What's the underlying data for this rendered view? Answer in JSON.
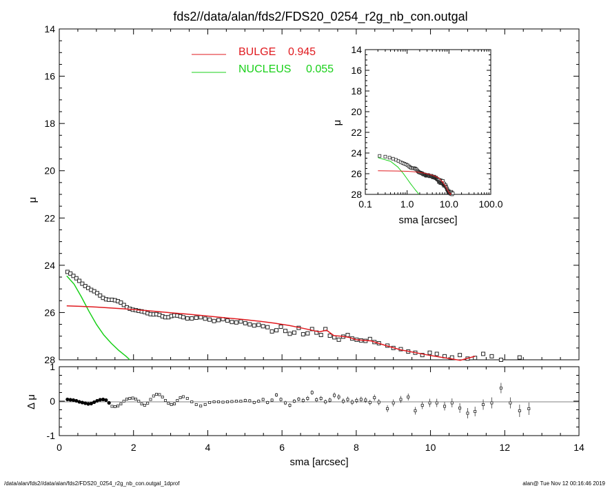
{
  "chart_data": [
    {
      "type": "scatter",
      "title": "fds2//data/alan/fds2/FDS20_0254_r2g_nb_con.outgal",
      "xlabel": "",
      "ylabel": "μ",
      "xlim": [
        0,
        14
      ],
      "ylim": [
        28,
        14
      ],
      "y_reversed": true,
      "xticks": [
        "0",
        "2",
        "4",
        "6",
        "8",
        "10",
        "12",
        "14"
      ],
      "yticks": [
        "14",
        "16",
        "18",
        "20",
        "22",
        "24",
        "26",
        "28"
      ],
      "legend_position": "top-center",
      "legend": [
        {
          "name": "BULGE",
          "value": "0.945",
          "color": "#e0191e"
        },
        {
          "name": "NUCLEUS",
          "value": "0.055",
          "color": "#18d018"
        }
      ],
      "observed": {
        "sma": [
          0.22,
          0.3,
          0.38,
          0.46,
          0.54,
          0.62,
          0.7,
          0.78,
          0.86,
          0.94,
          1.02,
          1.1,
          1.18,
          1.26,
          1.34,
          1.42,
          1.5,
          1.58,
          1.66,
          1.74,
          1.82,
          1.9,
          1.98,
          2.06,
          2.14,
          2.22,
          2.3,
          2.38,
          2.46,
          2.54,
          2.62,
          2.7,
          2.78,
          2.86,
          2.94,
          3.02,
          3.1,
          3.18,
          3.26,
          3.34,
          3.45,
          3.57,
          3.69,
          3.81,
          3.93,
          4.05,
          4.17,
          4.29,
          4.41,
          4.53,
          4.65,
          4.77,
          4.89,
          5.01,
          5.13,
          5.25,
          5.37,
          5.49,
          5.61,
          5.73,
          5.85,
          5.97,
          6.09,
          6.21,
          6.33,
          6.45,
          6.57,
          6.69,
          6.81,
          6.93,
          7.05,
          7.17,
          7.29,
          7.41,
          7.53,
          7.65,
          7.77,
          7.89,
          8.01,
          8.13,
          8.25,
          8.37,
          8.49,
          8.61,
          8.84,
          9.0,
          9.2,
          9.4,
          9.59,
          9.78,
          9.98,
          10.17,
          10.38,
          10.58,
          10.79,
          11.0,
          11.2,
          11.42,
          11.65,
          11.9,
          12.15,
          12.4,
          12.65
        ],
        "mu": [
          24.28,
          24.35,
          24.45,
          24.55,
          24.66,
          24.78,
          24.88,
          24.96,
          25.04,
          25.1,
          25.18,
          25.28,
          25.38,
          25.44,
          25.46,
          25.46,
          25.48,
          25.52,
          25.58,
          25.68,
          25.78,
          25.84,
          25.88,
          25.9,
          25.93,
          25.95,
          25.98,
          26.03,
          26.07,
          26.08,
          26.07,
          26.1,
          26.16,
          26.2,
          26.2,
          26.15,
          26.12,
          26.13,
          26.16,
          26.2,
          26.25,
          26.25,
          26.22,
          26.2,
          26.26,
          26.3,
          26.36,
          26.32,
          26.28,
          26.34,
          26.4,
          26.42,
          26.38,
          26.45,
          26.5,
          26.55,
          26.52,
          26.58,
          26.62,
          26.8,
          26.75,
          26.6,
          26.78,
          26.9,
          26.85,
          26.65,
          26.92,
          26.88,
          26.7,
          26.85,
          26.95,
          26.7,
          26.98,
          27.05,
          27.15,
          27.02,
          26.95,
          27.1,
          27.15,
          27.18,
          27.2,
          27.12,
          27.25,
          27.3,
          27.4,
          27.5,
          27.55,
          27.65,
          27.7,
          27.8,
          27.7,
          27.75,
          27.85,
          27.9,
          27.8,
          27.95,
          27.92,
          27.75,
          27.85,
          28.0,
          28.1,
          27.9,
          28.05
        ]
      },
      "bulge_model": {
        "sma": [
          0.2,
          0.6,
          1.0,
          1.4,
          1.8,
          2.2,
          2.6,
          3.0,
          3.4,
          3.8,
          4.2,
          4.6,
          5.0,
          5.4,
          5.8,
          6.2,
          6.6,
          7.0,
          7.2,
          7.4,
          7.6,
          7.8,
          8.0,
          8.4,
          8.8,
          9.2,
          9.6,
          10.0,
          10.4,
          10.8,
          11.2,
          11.6,
          12.0,
          12.4
        ],
        "mu": [
          25.72,
          25.74,
          25.77,
          25.81,
          25.85,
          25.9,
          25.95,
          26.01,
          26.06,
          26.12,
          26.18,
          26.24,
          26.3,
          26.37,
          26.45,
          26.55,
          26.68,
          26.82,
          26.75,
          26.98,
          27.0,
          27.05,
          27.15,
          27.2,
          27.4,
          27.58,
          27.7,
          27.82,
          27.92,
          28.02,
          27.85,
          28.12,
          28.25,
          28.4
        ]
      },
      "nucleus_model": {
        "sma": [
          0.2,
          0.4,
          0.6,
          0.8,
          1.0,
          1.2,
          1.4,
          1.6,
          1.8,
          1.9
        ],
        "mu": [
          24.45,
          24.8,
          25.35,
          25.95,
          26.5,
          26.95,
          27.3,
          27.6,
          27.85,
          28.0
        ]
      }
    },
    {
      "type": "scatter",
      "title": "",
      "xlabel": "sma [arcsec]",
      "ylabel": "Δ μ",
      "xlim": [
        0,
        14
      ],
      "ylim": [
        -1,
        1
      ],
      "xticks": [
        "0",
        "2",
        "4",
        "6",
        "8",
        "10",
        "12",
        "14"
      ],
      "yticks": [
        "-1",
        "0",
        "1"
      ],
      "residuals": {
        "sma": [
          1.42,
          1.5,
          1.58,
          1.66,
          1.74,
          1.82,
          1.9,
          1.98,
          2.06,
          2.14,
          2.22,
          2.3,
          2.38,
          2.46,
          2.54,
          2.62,
          2.7,
          2.78,
          2.86,
          2.94,
          3.02,
          3.1,
          3.18,
          3.26,
          3.34,
          3.45,
          3.57,
          3.69,
          3.81,
          3.93,
          4.05,
          4.17,
          4.29,
          4.41,
          4.53,
          4.65,
          4.77,
          4.89,
          5.01,
          5.13,
          5.25,
          5.37,
          5.49,
          5.61,
          5.73,
          5.85,
          5.97,
          6.09,
          6.21,
          6.33,
          6.45,
          6.57,
          6.69,
          6.81,
          6.93,
          7.05,
          7.17,
          7.29,
          7.41,
          7.53,
          7.65,
          7.77,
          7.89,
          8.01,
          8.13,
          8.25,
          8.37,
          8.49,
          8.61,
          8.84,
          9.0,
          9.2,
          9.4,
          9.59,
          9.78,
          9.98,
          10.17,
          10.38,
          10.58,
          10.79,
          11.0,
          11.2,
          11.42,
          11.65,
          11.9,
          12.15,
          12.4,
          12.65
        ],
        "dmu": [
          -0.15,
          -0.16,
          -0.14,
          -0.08,
          0.0,
          0.06,
          0.08,
          0.09,
          0.06,
          0.0,
          -0.08,
          -0.12,
          -0.06,
          0.05,
          0.15,
          0.2,
          0.19,
          0.12,
          0.02,
          -0.06,
          -0.1,
          -0.08,
          0.02,
          0.1,
          0.13,
          0.08,
          -0.02,
          -0.1,
          -0.14,
          -0.1,
          -0.04,
          -0.02,
          -0.02,
          -0.03,
          -0.02,
          -0.01,
          0.0,
          0.0,
          0.02,
          0.01,
          -0.04,
          0.0,
          0.05,
          -0.04,
          0.03,
          0.18,
          0.05,
          -0.05,
          -0.12,
          0.0,
          0.06,
          0.02,
          0.08,
          0.25,
          0.04,
          0.08,
          -0.02,
          0.03,
          0.17,
          0.12,
          0.0,
          0.05,
          -0.03,
          0.02,
          0.05,
          0.03,
          -0.04,
          0.1,
          -0.03,
          -0.22,
          -0.05,
          0.05,
          0.12,
          -0.28,
          -0.12,
          -0.05,
          -0.05,
          -0.15,
          -0.05,
          -0.2,
          -0.35,
          -0.3,
          -0.1,
          -0.05,
          0.38,
          -0.05,
          -0.28,
          -0.22
        ],
        "err": [
          0.02,
          0.02,
          0.02,
          0.02,
          0.02,
          0.02,
          0.02,
          0.02,
          0.02,
          0.02,
          0.02,
          0.02,
          0.02,
          0.02,
          0.02,
          0.03,
          0.03,
          0.03,
          0.03,
          0.03,
          0.03,
          0.03,
          0.03,
          0.03,
          0.03,
          0.03,
          0.03,
          0.04,
          0.04,
          0.04,
          0.04,
          0.04,
          0.04,
          0.04,
          0.04,
          0.04,
          0.04,
          0.04,
          0.05,
          0.05,
          0.05,
          0.05,
          0.05,
          0.05,
          0.05,
          0.06,
          0.06,
          0.06,
          0.06,
          0.06,
          0.06,
          0.07,
          0.07,
          0.07,
          0.07,
          0.07,
          0.07,
          0.07,
          0.08,
          0.08,
          0.08,
          0.08,
          0.08,
          0.08,
          0.08,
          0.08,
          0.08,
          0.09,
          0.09,
          0.1,
          0.1,
          0.1,
          0.1,
          0.11,
          0.11,
          0.12,
          0.12,
          0.12,
          0.13,
          0.14,
          0.15,
          0.14,
          0.15,
          0.16,
          0.15,
          0.16,
          0.18,
          0.18
        ],
        "dense_sma": [
          0.22,
          0.3,
          0.38,
          0.46,
          0.54,
          0.62,
          0.7,
          0.78,
          0.86,
          0.94,
          1.02,
          1.1,
          1.18,
          1.26,
          1.34
        ],
        "dense_dmu": [
          0.05,
          0.04,
          0.03,
          0.01,
          -0.02,
          -0.04,
          -0.06,
          -0.08,
          -0.07,
          -0.03,
          0.01,
          0.04,
          0.05,
          0.03,
          -0.05
        ]
      }
    },
    {
      "type": "scatter",
      "inset": true,
      "title": "",
      "xlabel": "sma [arcsec]",
      "ylabel": "μ",
      "x_scale": "log",
      "xlim": [
        0.1,
        100.0
      ],
      "ylim": [
        28,
        14
      ],
      "y_reversed": true,
      "xticks": [
        "0.1",
        "1.0",
        "10.0",
        "100.0"
      ],
      "yticks": [
        "14",
        "16",
        "18",
        "20",
        "22",
        "24",
        "26",
        "28"
      ]
    }
  ],
  "footer": {
    "left": "/data/alan/fds2//data/alan/fds2/FDS20_0254_r2g_nb_con.outgal_1dprof",
    "right": "alan@  Tue Nov 12 00:16:46 2019"
  }
}
